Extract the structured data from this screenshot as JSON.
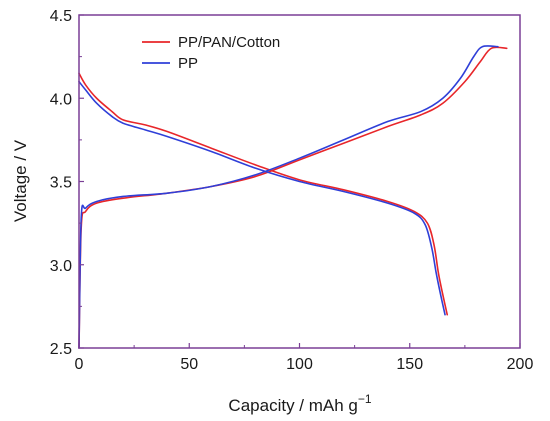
{
  "chart_data": {
    "type": "line",
    "title": "",
    "xlabel": "Capacity / mAh g",
    "xlabel_superscript": "−1",
    "ylabel": "Voltage / V",
    "xlim": [
      0,
      200
    ],
    "ylim": [
      2.5,
      4.5
    ],
    "x_ticks": [
      0,
      50,
      100,
      150,
      200
    ],
    "x_tick_labels": [
      "0",
      "50",
      "100",
      "150",
      "200"
    ],
    "y_ticks": [
      2.5,
      3.0,
      3.5,
      4.0,
      4.5
    ],
    "y_tick_labels": [
      "2.5",
      "3.0",
      "3.5",
      "4.0",
      "4.5"
    ],
    "grid": false,
    "legend_position": "top-left",
    "frame_color": "#7a3f96",
    "series": [
      {
        "name": "PP/PAN/Cotton",
        "color": "#e8262a",
        "charge": [
          [
            0,
            2.5
          ],
          [
            1,
            3.22
          ],
          [
            3,
            3.32
          ],
          [
            8,
            3.37
          ],
          [
            20,
            3.4
          ],
          [
            40,
            3.43
          ],
          [
            60,
            3.47
          ],
          [
            80,
            3.53
          ],
          [
            100,
            3.63
          ],
          [
            120,
            3.73
          ],
          [
            140,
            3.83
          ],
          [
            155,
            3.9
          ],
          [
            165,
            3.97
          ],
          [
            175,
            4.1
          ],
          [
            182,
            4.22
          ],
          [
            187,
            4.3
          ],
          [
            194,
            4.3
          ]
        ],
        "discharge": [
          [
            0,
            4.15
          ],
          [
            3,
            4.08
          ],
          [
            8,
            4.0
          ],
          [
            15,
            3.92
          ],
          [
            20,
            3.87
          ],
          [
            30,
            3.84
          ],
          [
            40,
            3.8
          ],
          [
            60,
            3.7
          ],
          [
            80,
            3.6
          ],
          [
            100,
            3.51
          ],
          [
            120,
            3.45
          ],
          [
            140,
            3.38
          ],
          [
            152,
            3.32
          ],
          [
            158,
            3.25
          ],
          [
            161,
            3.12
          ],
          [
            163,
            2.95
          ],
          [
            165,
            2.82
          ],
          [
            167,
            2.7
          ]
        ]
      },
      {
        "name": "PP",
        "color": "#2f3fd8",
        "charge": [
          [
            0,
            2.5
          ],
          [
            1,
            3.28
          ],
          [
            3,
            3.34
          ],
          [
            8,
            3.38
          ],
          [
            20,
            3.41
          ],
          [
            40,
            3.43
          ],
          [
            60,
            3.47
          ],
          [
            80,
            3.54
          ],
          [
            100,
            3.64
          ],
          [
            120,
            3.75
          ],
          [
            140,
            3.86
          ],
          [
            155,
            3.92
          ],
          [
            165,
            4.0
          ],
          [
            173,
            4.12
          ],
          [
            179,
            4.25
          ],
          [
            183,
            4.31
          ],
          [
            190,
            4.31
          ]
        ],
        "discharge": [
          [
            0,
            4.1
          ],
          [
            3,
            4.05
          ],
          [
            8,
            3.97
          ],
          [
            15,
            3.89
          ],
          [
            20,
            3.85
          ],
          [
            30,
            3.81
          ],
          [
            40,
            3.77
          ],
          [
            60,
            3.68
          ],
          [
            80,
            3.58
          ],
          [
            100,
            3.5
          ],
          [
            120,
            3.44
          ],
          [
            140,
            3.37
          ],
          [
            152,
            3.31
          ],
          [
            157,
            3.24
          ],
          [
            160,
            3.1
          ],
          [
            162,
            2.95
          ],
          [
            164,
            2.82
          ],
          [
            166,
            2.7
          ]
        ]
      }
    ]
  }
}
